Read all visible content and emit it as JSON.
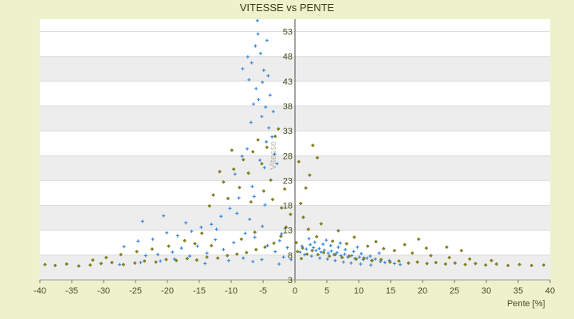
{
  "chart_data": {
    "type": "scatter",
    "title": "VITESSE vs PENTE",
    "xlabel": "Pente [%]",
    "ylabel": "Vitesse",
    "xlim": [
      -40,
      40
    ],
    "ylim": [
      3,
      55.5
    ],
    "x_ticks": [
      -40,
      -35,
      -30,
      -25,
      -20,
      -15,
      -10,
      -5,
      0,
      5,
      10,
      15,
      20,
      25,
      30,
      35,
      40
    ],
    "y_ticks": [
      3,
      8,
      13,
      18,
      23,
      28,
      33,
      38,
      43,
      48,
      53
    ],
    "grid": true,
    "legend": "none",
    "colors": {
      "series_a": "#3a8ad8",
      "series_b": "#8a8a18",
      "band": "#ededed",
      "plot_bg": "#ffffff"
    },
    "series": [
      {
        "color": "#3a8ad8",
        "marker": "+",
        "points": [
          [
            -6.2,
            50.1
          ],
          [
            -5.4,
            48.6
          ],
          [
            -4.9,
            45.2
          ],
          [
            -6.8,
            46.7
          ],
          [
            -5.1,
            42.8
          ],
          [
            -4.2,
            44.1
          ],
          [
            -6.1,
            41.5
          ],
          [
            -5.7,
            39.3
          ],
          [
            -4.6,
            37.8
          ],
          [
            -3.9,
            40.2
          ],
          [
            -7.2,
            43.3
          ],
          [
            -5.8,
            52.5
          ],
          [
            -4.4,
            51.2
          ],
          [
            -6.5,
            38.4
          ],
          [
            -5.2,
            35.9
          ],
          [
            -4.1,
            33.6
          ],
          [
            -3.6,
            31.8
          ],
          [
            -6.9,
            34.7
          ],
          [
            -7.5,
            29.4
          ],
          [
            -5.5,
            27.1
          ],
          [
            -4.8,
            25.6
          ],
          [
            -3.2,
            28.3
          ],
          [
            -8.3,
            27.9
          ],
          [
            -9.4,
            24.3
          ],
          [
            -6.7,
            21.8
          ],
          [
            -8.8,
            19.5
          ],
          [
            -10.2,
            17.4
          ],
          [
            -11.6,
            15.8
          ],
          [
            -13.1,
            14.2
          ],
          [
            -14.7,
            13.6
          ],
          [
            -16.2,
            12.8
          ],
          [
            -18.4,
            11.9
          ],
          [
            -20.1,
            12.5
          ],
          [
            -22.3,
            11.2
          ],
          [
            -24.6,
            10.8
          ],
          [
            -26.8,
            9.7
          ],
          [
            -12.5,
            11.1
          ],
          [
            -15.3,
            9.8
          ],
          [
            -17.8,
            9.4
          ],
          [
            -19.2,
            8.6
          ],
          [
            -21.5,
            8.1
          ],
          [
            -23.4,
            7.9
          ],
          [
            -9.6,
            10.5
          ],
          [
            -7.8,
            12.4
          ],
          [
            -6.3,
            11.6
          ],
          [
            -5.1,
            13.8
          ],
          [
            -4.3,
            9.9
          ],
          [
            -3.1,
            8.7
          ],
          [
            -2.4,
            10.9
          ],
          [
            -1.8,
            7.6
          ],
          [
            -11.2,
            9.1
          ],
          [
            -13.8,
            8.4
          ],
          [
            -16.5,
            7.8
          ],
          [
            -18.9,
            7.2
          ],
          [
            -21.1,
            6.8
          ],
          [
            -24.2,
            6.5
          ],
          [
            -27.5,
            6.1
          ],
          [
            -14.1,
            6.3
          ],
          [
            -10.4,
            6.9
          ],
          [
            -8.1,
            7.4
          ],
          [
            -6.6,
            6.7
          ],
          [
            -5.2,
            7.1
          ],
          [
            -12.3,
            13.2
          ],
          [
            -17.1,
            14.5
          ],
          [
            -20.6,
            15.9
          ],
          [
            -23.9,
            14.8
          ],
          [
            -7.1,
            15.2
          ],
          [
            -9.1,
            16.4
          ],
          [
            -4.7,
            18.1
          ],
          [
            -6.4,
            19.8
          ],
          [
            -5.9,
            55.2
          ],
          [
            -7.4,
            47.9
          ],
          [
            -8.2,
            45.5
          ],
          [
            -3.4,
            36.9
          ],
          [
            -4.5,
            30.8
          ],
          [
            -2.8,
            26.4
          ],
          [
            -2.1,
            12.3
          ],
          [
            -1.2,
            9.5
          ],
          [
            -0.6,
            7.1
          ],
          [
            -2.5,
            6.2
          ],
          [
            1.1,
            9.8
          ],
          [
            1.8,
            9.2
          ],
          [
            2.4,
            10.1
          ],
          [
            2.9,
            9.5
          ],
          [
            3.3,
            8.9
          ],
          [
            3.8,
            9.3
          ],
          [
            4.1,
            8.6
          ],
          [
            4.6,
            9.0
          ],
          [
            5.2,
            8.4
          ],
          [
            5.7,
            8.8
          ],
          [
            6.1,
            8.1
          ],
          [
            6.6,
            8.5
          ],
          [
            7.2,
            7.9
          ],
          [
            7.8,
            8.2
          ],
          [
            8.3,
            7.6
          ],
          [
            8.9,
            7.9
          ],
          [
            9.4,
            7.3
          ],
          [
            10.1,
            7.6
          ],
          [
            10.7,
            7.1
          ],
          [
            11.3,
            7.4
          ],
          [
            12.0,
            6.9
          ],
          [
            12.6,
            7.2
          ],
          [
            13.4,
            6.7
          ],
          [
            14.1,
            6.5
          ],
          [
            14.8,
            6.9
          ],
          [
            15.6,
            6.3
          ],
          [
            16.5,
            6.1
          ],
          [
            3.1,
            10.6
          ],
          [
            4.4,
            10.2
          ],
          [
            5.6,
            9.9
          ],
          [
            6.8,
            9.6
          ],
          [
            7.9,
            9.1
          ],
          [
            9.2,
            8.7
          ],
          [
            10.4,
            8.3
          ],
          [
            11.8,
            7.8
          ],
          [
            2.6,
            7.8
          ],
          [
            3.9,
            7.4
          ],
          [
            5.1,
            7.2
          ],
          [
            6.3,
            6.9
          ],
          [
            7.6,
            6.6
          ],
          [
            8.8,
            6.4
          ],
          [
            10.3,
            6.2
          ],
          [
            11.9,
            6.0
          ],
          [
            1.5,
            8.1
          ],
          [
            2.2,
            11.3
          ],
          [
            4.9,
            11.0
          ],
          [
            7.1,
            10.4
          ],
          [
            9.8,
            9.6
          ],
          [
            13.2,
            8.4
          ],
          [
            0.8,
            8.6
          ]
        ]
      },
      {
        "color": "#8a8a18",
        "marker": "diamond",
        "points": [
          [
            -39.2,
            6.1
          ],
          [
            -37.6,
            5.9
          ],
          [
            -35.8,
            6.2
          ],
          [
            -33.9,
            5.8
          ],
          [
            -32.1,
            6.0
          ],
          [
            -30.4,
            6.3
          ],
          [
            -28.7,
            6.5
          ],
          [
            -26.9,
            6.1
          ],
          [
            -25.1,
            6.4
          ],
          [
            -23.6,
            6.8
          ],
          [
            -21.8,
            6.6
          ],
          [
            -20.2,
            7.1
          ],
          [
            -18.6,
            6.9
          ],
          [
            -16.9,
            7.3
          ],
          [
            -15.4,
            7.0
          ],
          [
            -13.8,
            7.6
          ],
          [
            -12.1,
            7.4
          ],
          [
            -10.6,
            7.9
          ],
          [
            -9.1,
            8.2
          ],
          [
            -7.6,
            8.5
          ],
          [
            -6.1,
            9.1
          ],
          [
            -4.7,
            9.6
          ],
          [
            -3.3,
            10.4
          ],
          [
            -2.2,
            11.8
          ],
          [
            -1.4,
            13.6
          ],
          [
            -0.7,
            16.2
          ],
          [
            -3.8,
            23.1
          ],
          [
            -5.2,
            26.4
          ],
          [
            -6.6,
            28.8
          ],
          [
            -8.1,
            27.2
          ],
          [
            -9.6,
            25.3
          ],
          [
            -11.2,
            22.7
          ],
          [
            -12.8,
            20.1
          ],
          [
            -7.3,
            24.5
          ],
          [
            -4.4,
            29.7
          ],
          [
            -3.1,
            31.9
          ],
          [
            -2.6,
            33.4
          ],
          [
            -5.8,
            31.2
          ],
          [
            -9.9,
            29.1
          ],
          [
            -8.7,
            21.6
          ],
          [
            -10.5,
            19.4
          ],
          [
            -6.9,
            18.7
          ],
          [
            -4.9,
            20.9
          ],
          [
            -3.5,
            19.2
          ],
          [
            -2.1,
            17.5
          ],
          [
            -1.6,
            21.3
          ],
          [
            -11.8,
            24.8
          ],
          [
            -13.4,
            17.9
          ],
          [
            -14.6,
            12.4
          ],
          [
            -17.3,
            10.9
          ],
          [
            -19.8,
            9.8
          ],
          [
            -22.4,
            9.2
          ],
          [
            -24.8,
            8.7
          ],
          [
            -27.3,
            8.1
          ],
          [
            -29.6,
            7.5
          ],
          [
            -31.7,
            7.0
          ],
          [
            -13.1,
            9.9
          ],
          [
            -15.7,
            10.3
          ],
          [
            -8.4,
            11.2
          ],
          [
            -6.3,
            12.6
          ],
          [
            0.4,
            8.7
          ],
          [
            1.2,
            9.4
          ],
          [
            1.9,
            8.2
          ],
          [
            2.7,
            8.9
          ],
          [
            3.6,
            8.1
          ],
          [
            4.5,
            8.5
          ],
          [
            5.4,
            7.8
          ],
          [
            6.3,
            8.1
          ],
          [
            7.4,
            7.5
          ],
          [
            8.5,
            7.8
          ],
          [
            9.6,
            7.2
          ],
          [
            10.8,
            7.4
          ],
          [
            12.1,
            6.9
          ],
          [
            13.5,
            7.1
          ],
          [
            14.9,
            6.6
          ],
          [
            16.3,
            6.8
          ],
          [
            17.8,
            6.4
          ],
          [
            19.2,
            6.6
          ],
          [
            20.7,
            6.3
          ],
          [
            22.1,
            6.5
          ],
          [
            23.6,
            6.2
          ],
          [
            25.1,
            6.4
          ],
          [
            26.7,
            6.1
          ],
          [
            28.3,
            6.3
          ],
          [
            29.9,
            6.0
          ],
          [
            31.6,
            6.2
          ],
          [
            33.4,
            5.9
          ],
          [
            35.2,
            6.1
          ],
          [
            37.1,
            5.9
          ],
          [
            39.0,
            6.0
          ],
          [
            15.6,
            8.9
          ],
          [
            18.4,
            8.4
          ],
          [
            21.3,
            7.9
          ],
          [
            24.2,
            7.5
          ],
          [
            27.4,
            7.2
          ],
          [
            30.8,
            6.9
          ],
          [
            17.2,
            10.1
          ],
          [
            20.6,
            9.4
          ],
          [
            11.4,
            9.8
          ],
          [
            8.1,
            10.3
          ],
          [
            5.9,
            10.8
          ],
          [
            3.4,
            11.7
          ],
          [
            2.1,
            13.2
          ],
          [
            1.3,
            15.6
          ],
          [
            0.9,
            18.4
          ],
          [
            1.7,
            21.5
          ],
          [
            0.6,
            26.8
          ],
          [
            2.3,
            24.1
          ],
          [
            4.1,
            14.3
          ],
          [
            6.8,
            12.9
          ],
          [
            9.3,
            11.6
          ],
          [
            12.7,
            10.7
          ],
          [
            19.4,
            11.2
          ],
          [
            23.8,
            9.6
          ],
          [
            26.1,
            8.9
          ],
          [
            13.9,
            9.3
          ],
          [
            2.8,
            30.1
          ],
          [
            3.5,
            27.6
          ],
          [
            1.0,
            7.3
          ],
          [
            0.2,
            10.5
          ]
        ]
      }
    ]
  }
}
